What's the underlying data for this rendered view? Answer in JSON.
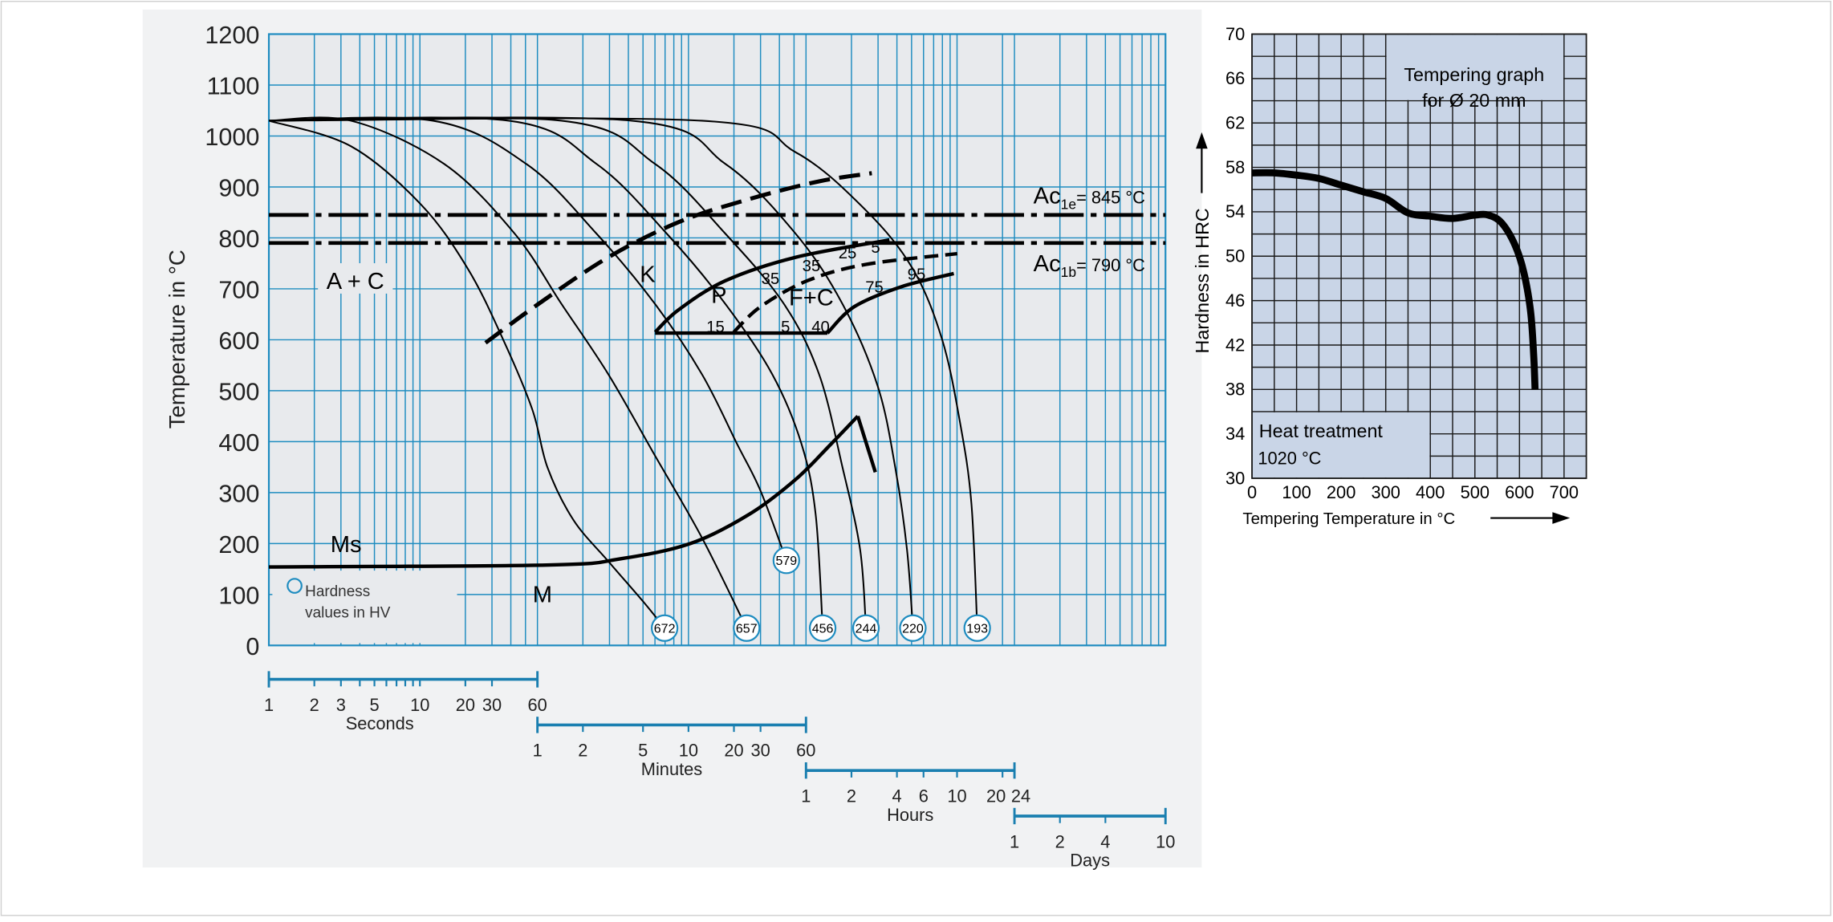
{
  "colors": {
    "cct_grid": "#1e8cc0",
    "cct_bg": "#e8eaed",
    "temper_bg": "#c9d5e7",
    "temper_grid": "#1a1a1a",
    "curve": "#000000",
    "scale_bar": "#1a7fb0"
  },
  "chart_data": [
    {
      "type": "line",
      "xscale": "log",
      "xunit": "seconds",
      "xlim": [
        1,
        864000
      ],
      "ylim": [
        0,
        1200
      ],
      "ylabel": "Temperature in °C",
      "yticks": [
        0,
        100,
        200,
        300,
        400,
        500,
        600,
        700,
        800,
        900,
        1000,
        1100,
        1200
      ],
      "grid": true,
      "time_scales": [
        {
          "name": "Seconds",
          "unit_s": 1,
          "range": [
            1,
            60
          ],
          "tick_marks": [
            2,
            3,
            4,
            5,
            6,
            7,
            8,
            9,
            10,
            20,
            30
          ],
          "labels": [
            "1",
            "2",
            "3",
            "5",
            "10",
            "20",
            "30",
            "60"
          ],
          "label_values": [
            1,
            2,
            3,
            5,
            10,
            20,
            30,
            60
          ]
        },
        {
          "name": "Minutes",
          "unit_s": 60,
          "range": [
            1,
            60
          ],
          "tick_marks": [
            2,
            5,
            10,
            20,
            30
          ],
          "labels": [
            "1",
            "2",
            "5",
            "10",
            "20",
            "30",
            "60"
          ],
          "label_values": [
            1,
            2,
            5,
            10,
            20,
            30,
            60
          ]
        },
        {
          "name": "Hours",
          "unit_s": 3600,
          "range": [
            1,
            24
          ],
          "tick_marks": [
            2,
            4,
            6,
            10,
            20
          ],
          "labels": [
            "1",
            "2",
            "4",
            "6",
            "10",
            "20",
            "24"
          ],
          "label_values": [
            1,
            2,
            4,
            6,
            10,
            20,
            24
          ]
        },
        {
          "name": "Days",
          "unit_s": 86400,
          "range": [
            1,
            10
          ],
          "tick_marks": [
            2,
            4
          ],
          "labels": [
            "1",
            "2",
            "4",
            "10"
          ],
          "label_values": [
            1,
            2,
            4,
            10
          ]
        }
      ],
      "cooling_curves": [
        {
          "hardness_hv": "672",
          "points": [
            [
              1,
              1030
            ],
            [
              3.49,
              980
            ],
            [
              10.2,
              865
            ],
            [
              20.8,
              739
            ],
            [
              35.5,
              601
            ],
            [
              55.5,
              463
            ],
            [
              70,
              349
            ],
            [
              104,
              246
            ],
            [
              177,
              165
            ],
            [
              303,
              85
            ],
            [
              417,
              34
            ]
          ]
        },
        {
          "hardness_hv": "657",
          "points": [
            [
              1,
              1030
            ],
            [
              3.49,
              1030
            ],
            [
              14.5,
              945
            ],
            [
              42.5,
              808
            ],
            [
              86.7,
              670
            ],
            [
              177,
              532
            ],
            [
              361,
              372
            ],
            [
              738,
              211
            ],
            [
              1455,
              34
            ]
          ]
        },
        {
          "hardness_hv": "579",
          "points": [
            [
              1,
              1030
            ],
            [
              12.2,
              1030
            ],
            [
              50.7,
              945
            ],
            [
              148,
              808
            ],
            [
              361,
              670
            ],
            [
              738,
              532
            ],
            [
              1261,
              395
            ],
            [
              1803,
              303
            ],
            [
              2668,
              167
            ]
          ]
        },
        {
          "hardness_hv": "456",
          "points": [
            [
              1,
              1030
            ],
            [
              38.8,
              1030
            ],
            [
              148,
              945
            ],
            [
              432,
              808
            ],
            [
              1055,
              670
            ],
            [
              2155,
              532
            ],
            [
              3365,
              395
            ],
            [
              4171,
              257
            ],
            [
              4641,
              34
            ]
          ]
        },
        {
          "hardness_hv": "244",
          "points": [
            [
              1,
              1030
            ],
            [
              86.7,
              1030
            ],
            [
              361,
              945
            ],
            [
              1055,
              808
            ],
            [
              2576,
              670
            ],
            [
              4397,
              532
            ],
            [
              6286,
              349
            ],
            [
              8218,
              188
            ],
            [
              8980,
              34
            ]
          ]
        },
        {
          "hardness_hv": "220",
          "points": [
            [
              1,
              1030
            ],
            [
              253,
              1030
            ],
            [
              1055,
              945
            ],
            [
              3078,
              808
            ],
            [
              6286,
              670
            ],
            [
              10740,
              509
            ],
            [
              14040,
              349
            ],
            [
              16790,
              188
            ],
            [
              18360,
              34
            ]
          ]
        },
        {
          "hardness_hv": "193",
          "points": [
            [
              1,
              1030
            ],
            [
              738,
              1030
            ],
            [
              3078,
              968
            ],
            [
              8980,
              854
            ],
            [
              18360,
              739
            ],
            [
              28650,
              601
            ],
            [
              37500,
              441
            ],
            [
              44780,
              280
            ],
            [
              48980,
              34
            ]
          ]
        }
      ],
      "ms_line": [
        [
          1,
          154
        ],
        [
          72.5,
          158
        ],
        [
          212,
          170
        ],
        [
          618,
          200
        ],
        [
          1508,
          257
        ],
        [
          3078,
          326
        ],
        [
          5260,
          395
        ],
        [
          7925,
          450
        ],
        [
          10370,
          340
        ]
      ],
      "k_boundary": [
        [
          27.2,
          594
        ],
        [
          60.7,
          670
        ],
        [
          177,
          762
        ],
        [
          517,
          831
        ],
        [
          1508,
          876
        ],
        [
          4397,
          911
        ],
        [
          9820,
          927
        ]
      ],
      "pearlite_start": [
        [
          361,
          615
        ],
        [
          517,
          659
        ],
        [
          1055,
          716
        ],
        [
          3078,
          762
        ],
        [
          12840,
          796
        ]
      ],
      "pearlite_bottom": [
        [
          361,
          613
        ],
        [
          4987,
          613
        ]
      ],
      "pearlite_end": [
        [
          4987,
          613
        ],
        [
          7520,
          665
        ],
        [
          15360,
          704
        ],
        [
          34270,
          730
        ]
      ],
      "ferrite_boundary": [
        [
          1196,
          615
        ],
        [
          1803,
          665
        ],
        [
          3680,
          716
        ],
        [
          8980,
          748
        ],
        [
          36140,
          769
        ]
      ],
      "transformation_lines": [
        {
          "label": "Ac",
          "sub": "1e",
          "text": "= 845 °C",
          "temp": 845
        },
        {
          "label": "Ac",
          "sub": "1b",
          "text": "= 790 °C",
          "temp": 790
        }
      ],
      "region_labels": {
        "austenite": "A + C",
        "k": "K",
        "pearlite": "P",
        "ferrite": "F+C",
        "ms": "Ms",
        "martensite": "M"
      },
      "percent_labels": [
        "15",
        "5",
        "40",
        "35",
        "35",
        "25",
        "5",
        "75",
        "95"
      ],
      "legend": {
        "line1": "Hardness",
        "line2": "values in HV"
      }
    },
    {
      "type": "line",
      "title_line1": "Tempering graph",
      "title_line2": "for Ø 20 mm",
      "note_line1": "Heat treatment",
      "note_line2": "1020 °C",
      "xlabel": "Tempering Temperature in °C",
      "ylabel": "Hardness in HRC",
      "xlim": [
        0,
        750
      ],
      "ylim": [
        30,
        70
      ],
      "xticks": [
        0,
        100,
        200,
        300,
        400,
        500,
        600,
        700
      ],
      "yticks": [
        30,
        34,
        38,
        42,
        46,
        50,
        54,
        58,
        62,
        66,
        70
      ],
      "grid": true,
      "series": [
        {
          "points": [
            [
              0,
              57.5
            ],
            [
              50,
              57.5
            ],
            [
              100,
              57.3
            ],
            [
              150,
              57
            ],
            [
              200,
              56.4
            ],
            [
              250,
              55.8
            ],
            [
              300,
              55.2
            ],
            [
              350,
              53.9
            ],
            [
              400,
              53.6
            ],
            [
              450,
              53.4
            ],
            [
              500,
              53.7
            ],
            [
              530,
              53.7
            ],
            [
              560,
              53
            ],
            [
              590,
              51
            ],
            [
              610,
              48.5
            ],
            [
              625,
              45
            ],
            [
              632,
              41
            ],
            [
              635,
              38
            ]
          ]
        }
      ]
    }
  ]
}
